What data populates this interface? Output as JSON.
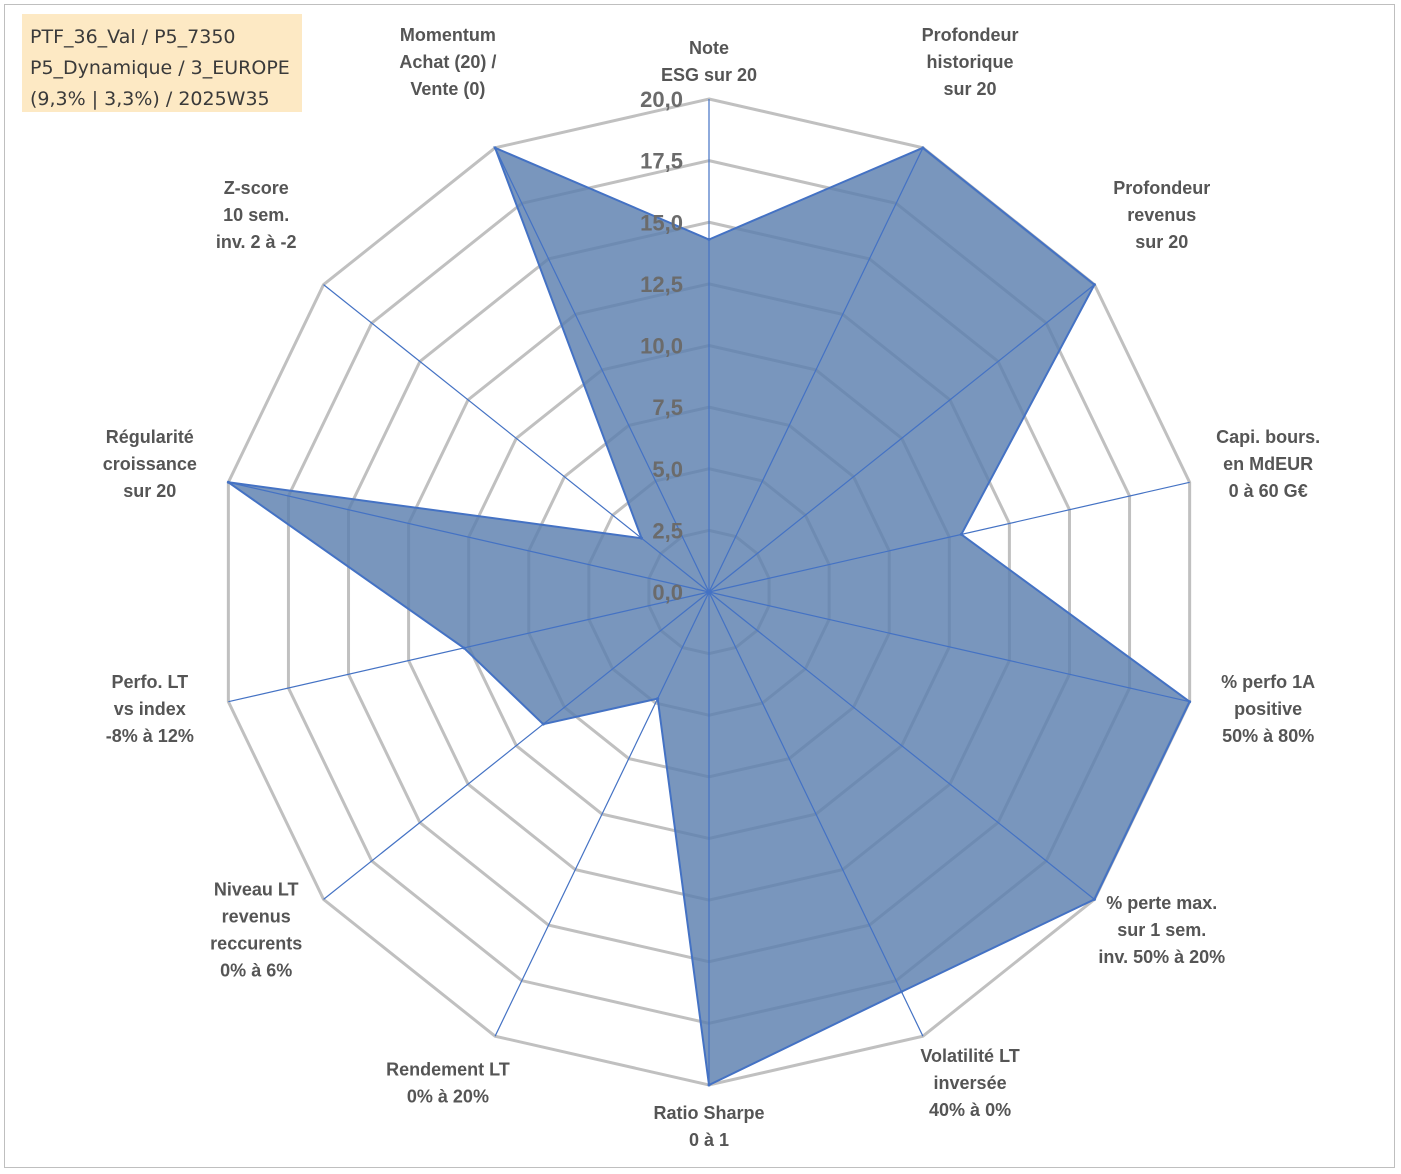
{
  "info_box": {
    "lines": [
      "PTF_36_Val / P5_7350",
      "P5_Dynamique / 3_EUROPE",
      "(9,3% | 3,3%) / 2025W35"
    ]
  },
  "colors": {
    "grid": "#c0c0c0",
    "spoke": "#4472c4",
    "area_fill": "#5b7fae",
    "area_stroke": "#4472c4",
    "info_bg": "#fde9c4"
  },
  "chart_data": {
    "type": "radar",
    "title": "",
    "rmin": 0,
    "rmax": 20,
    "tick_step": 2.5,
    "tick_labels": [
      "0,0",
      "2,5",
      "5,0",
      "7,5",
      "10,0",
      "12,5",
      "15,0",
      "17,5",
      "20,0"
    ],
    "grid": true,
    "legend": "none",
    "axes": [
      {
        "label_lines": [
          "Note",
          "ESG sur 20"
        ]
      },
      {
        "label_lines": [
          "Profondeur",
          "historique",
          "sur 20"
        ]
      },
      {
        "label_lines": [
          "Profondeur",
          "revenus",
          "sur 20"
        ]
      },
      {
        "label_lines": [
          "Capi. bours.",
          "en MdEUR",
          "0 à 60 G€"
        ]
      },
      {
        "label_lines": [
          "% perfo 1A",
          "positive",
          "50% à 80%"
        ]
      },
      {
        "label_lines": [
          "% perte max.",
          "sur 1 sem.",
          "inv. 50% à 20%"
        ]
      },
      {
        "label_lines": [
          "Volatilité LT",
          "inversée",
          "40% à 0%"
        ]
      },
      {
        "label_lines": [
          "Ratio Sharpe",
          "0 à 1"
        ]
      },
      {
        "label_lines": [
          "Rendement LT",
          "0% à 20%"
        ]
      },
      {
        "label_lines": [
          "Niveau LT",
          "revenus",
          "reccurents",
          "0% à 6%"
        ]
      },
      {
        "label_lines": [
          "Perfo. LT",
          "vs index",
          "-8% à 12%"
        ]
      },
      {
        "label_lines": [
          "Régularité",
          "croissance",
          "sur 20"
        ]
      },
      {
        "label_lines": [
          "Z-score",
          "10 sem.",
          "inv. 2 à -2"
        ]
      },
      {
        "label_lines": [
          "Momentum",
          "Achat (20) /",
          "Vente (0)"
        ]
      }
    ],
    "series": [
      {
        "values": [
          14.3,
          20.0,
          20.0,
          10.5,
          20.0,
          20.0,
          18.0,
          20.0,
          4.8,
          8.6,
          10.2,
          20.0,
          3.5,
          20.0
        ]
      }
    ]
  }
}
